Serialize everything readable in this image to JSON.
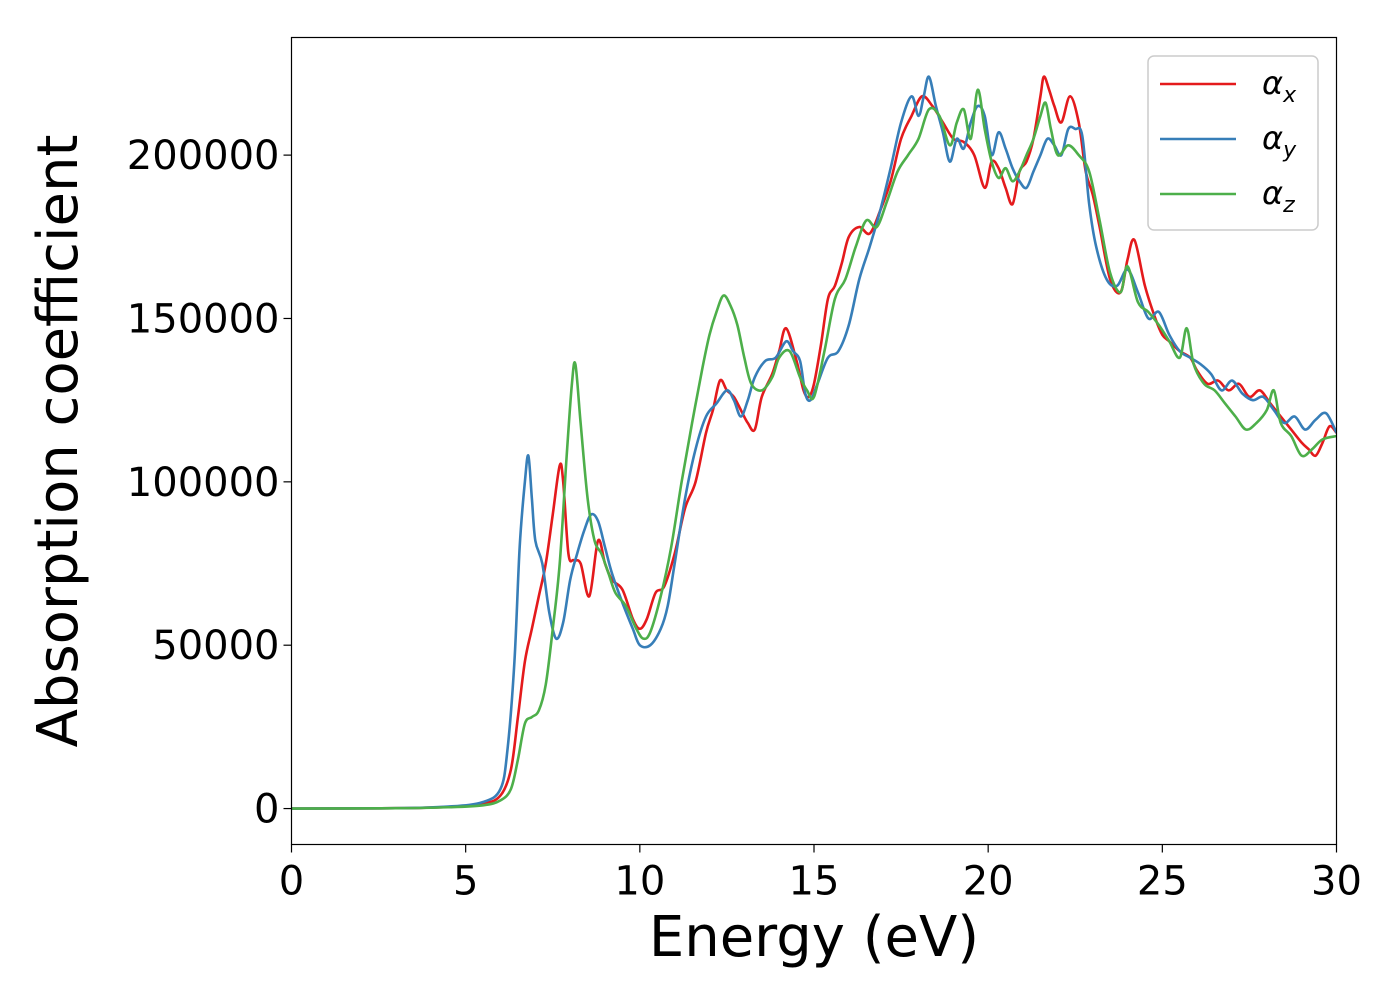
{
  "chart_data": {
    "type": "line",
    "title": "",
    "xlabel": "Energy (eV)",
    "ylabel": "Absorption coefficient",
    "xlim": [
      0,
      30
    ],
    "ylim": [
      -11000,
      236000
    ],
    "xticks": [
      0,
      5,
      10,
      15,
      20,
      25,
      30
    ],
    "yticks": [
      0,
      50000,
      100000,
      150000,
      200000
    ],
    "grid": false,
    "legend_position": "top-right",
    "series": [
      {
        "name": "αx",
        "symbol": "α",
        "subscript": "x",
        "color": "#e41a1c",
        "x": [
          0,
          3,
          4.5,
          5.5,
          6.0,
          6.3,
          6.5,
          6.7,
          6.9,
          7.1,
          7.3,
          7.5,
          7.7,
          7.8,
          7.95,
          8.1,
          8.3,
          8.55,
          8.8,
          9.0,
          9.2,
          9.5,
          9.8,
          10.0,
          10.2,
          10.45,
          10.7,
          11.0,
          11.3,
          11.6,
          11.9,
          12.1,
          12.3,
          12.5,
          12.7,
          12.9,
          13.1,
          13.3,
          13.5,
          13.8,
          14.0,
          14.2,
          14.5,
          14.7,
          14.85,
          15.0,
          15.2,
          15.4,
          15.6,
          15.8,
          16.0,
          16.3,
          16.6,
          16.9,
          17.2,
          17.5,
          17.8,
          18.1,
          18.4,
          18.7,
          19.0,
          19.3,
          19.6,
          19.9,
          20.1,
          20.3,
          20.5,
          20.7,
          20.9,
          21.1,
          21.3,
          21.5,
          21.6,
          21.75,
          21.9,
          22.1,
          22.35,
          22.6,
          22.8,
          23.0,
          23.2,
          23.5,
          23.8,
          24.0,
          24.2,
          24.5,
          24.8,
          25.0,
          25.2,
          25.5,
          25.8,
          26.0,
          26.3,
          26.6,
          26.9,
          27.2,
          27.5,
          27.8,
          28.1,
          28.4,
          28.7,
          29.0,
          29.2,
          29.4,
          29.6,
          29.8,
          30
        ],
        "y": [
          0,
          100,
          500,
          1500,
          4000,
          12000,
          28000,
          45000,
          55000,
          65000,
          75000,
          90000,
          105000,
          100000,
          78000,
          76000,
          75000,
          65000,
          82000,
          75000,
          70000,
          67000,
          58000,
          55000,
          58000,
          66000,
          68000,
          78000,
          92000,
          100000,
          115000,
          122000,
          131000,
          128000,
          126000,
          122000,
          118000,
          116000,
          126000,
          133000,
          140000,
          147000,
          137000,
          128000,
          126000,
          130000,
          142000,
          156000,
          160000,
          167000,
          175000,
          178000,
          176000,
          183000,
          192000,
          205000,
          212000,
          218000,
          215000,
          210000,
          205000,
          204000,
          200000,
          190000,
          198000,
          196000,
          190000,
          185000,
          195000,
          198000,
          205000,
          218000,
          224000,
          220000,
          215000,
          210000,
          218000,
          210000,
          195000,
          188000,
          178000,
          162000,
          158000,
          168000,
          174000,
          160000,
          150000,
          145000,
          143000,
          140000,
          138000,
          134000,
          130000,
          131000,
          128000,
          130000,
          126000,
          128000,
          124000,
          120000,
          116000,
          112000,
          110000,
          108000,
          112000,
          117000,
          115000
        ]
      },
      {
        "name": "αy",
        "symbol": "α",
        "subscript": "y",
        "color": "#377eb8",
        "x": [
          0,
          3,
          4.5,
          5.5,
          6.0,
          6.2,
          6.4,
          6.55,
          6.7,
          6.8,
          6.9,
          7.0,
          7.2,
          7.4,
          7.6,
          7.8,
          8.0,
          8.2,
          8.4,
          8.6,
          8.8,
          9.0,
          9.2,
          9.5,
          9.8,
          10.0,
          10.3,
          10.6,
          10.8,
          11.0,
          11.3,
          11.6,
          11.9,
          12.2,
          12.5,
          12.7,
          12.9,
          13.1,
          13.3,
          13.6,
          13.9,
          14.2,
          14.4,
          14.6,
          14.75,
          14.9,
          15.1,
          15.4,
          15.7,
          16.0,
          16.3,
          16.6,
          16.9,
          17.2,
          17.5,
          17.8,
          18.0,
          18.15,
          18.3,
          18.5,
          18.7,
          18.9,
          19.1,
          19.3,
          19.5,
          19.7,
          19.9,
          20.1,
          20.3,
          20.5,
          20.7,
          20.9,
          21.1,
          21.3,
          21.5,
          21.7,
          21.9,
          22.1,
          22.3,
          22.5,
          22.7,
          22.9,
          23.1,
          23.4,
          23.7,
          24.0,
          24.3,
          24.6,
          24.9,
          25.2,
          25.5,
          25.8,
          26.1,
          26.4,
          26.7,
          27.0,
          27.3,
          27.6,
          27.9,
          28.2,
          28.5,
          28.8,
          29.1,
          29.4,
          29.7,
          30
        ],
        "y": [
          0,
          100,
          600,
          2000,
          6000,
          18000,
          45000,
          80000,
          100000,
          108000,
          95000,
          82000,
          75000,
          60000,
          52000,
          57000,
          70000,
          78000,
          85000,
          90000,
          88000,
          80000,
          72000,
          63000,
          55000,
          50000,
          50000,
          55000,
          62000,
          75000,
          95000,
          110000,
          120000,
          124000,
          128000,
          125000,
          120000,
          125000,
          132000,
          137000,
          138000,
          143000,
          140000,
          137000,
          127000,
          125000,
          130000,
          138000,
          140000,
          148000,
          162000,
          172000,
          183000,
          196000,
          210000,
          218000,
          212000,
          218000,
          224000,
          215000,
          207000,
          198000,
          205000,
          202000,
          210000,
          215000,
          212000,
          200000,
          207000,
          202000,
          196000,
          192000,
          190000,
          195000,
          200000,
          205000,
          203000,
          200000,
          208000,
          208000,
          206000,
          185000,
          172000,
          162000,
          160000,
          165000,
          158000,
          150000,
          152000,
          145000,
          140000,
          138000,
          136000,
          133000,
          128000,
          131000,
          127000,
          125000,
          126000,
          122000,
          118000,
          120000,
          116000,
          119000,
          121000,
          115000
        ]
      },
      {
        "name": "αz",
        "symbol": "α",
        "subscript": "z",
        "color": "#4daf4a",
        "x": [
          0,
          3,
          4.5,
          5.5,
          6.0,
          6.3,
          6.5,
          6.7,
          6.9,
          7.1,
          7.3,
          7.5,
          7.7,
          7.9,
          8.05,
          8.15,
          8.3,
          8.5,
          8.7,
          8.9,
          9.1,
          9.3,
          9.6,
          9.9,
          10.1,
          10.3,
          10.6,
          10.9,
          11.2,
          11.5,
          11.8,
          12.0,
          12.2,
          12.4,
          12.6,
          12.8,
          13.0,
          13.2,
          13.5,
          13.8,
          14.0,
          14.3,
          14.6,
          14.8,
          15.0,
          15.3,
          15.6,
          15.9,
          16.2,
          16.5,
          16.8,
          17.1,
          17.4,
          17.7,
          18.0,
          18.3,
          18.6,
          18.9,
          19.1,
          19.3,
          19.5,
          19.7,
          19.9,
          20.1,
          20.3,
          20.5,
          20.7,
          20.9,
          21.1,
          21.3,
          21.5,
          21.65,
          21.8,
          22.0,
          22.3,
          22.6,
          22.9,
          23.2,
          23.5,
          23.8,
          24.0,
          24.3,
          24.6,
          24.9,
          25.2,
          25.5,
          25.7,
          25.9,
          26.2,
          26.5,
          26.8,
          27.1,
          27.4,
          27.7,
          28.0,
          28.2,
          28.4,
          28.7,
          29.0,
          29.3,
          29.6,
          30
        ],
        "y": [
          0,
          100,
          400,
          1000,
          2500,
          6000,
          15000,
          26000,
          28000,
          30000,
          38000,
          55000,
          75000,
          108000,
          130000,
          136000,
          118000,
          95000,
          82000,
          78000,
          72000,
          66000,
          62000,
          55000,
          52000,
          54000,
          65000,
          80000,
          100000,
          118000,
          135000,
          145000,
          152000,
          157000,
          154000,
          148000,
          138000,
          130000,
          128000,
          132000,
          138000,
          140000,
          132000,
          128000,
          126000,
          140000,
          156000,
          162000,
          172000,
          180000,
          178000,
          186000,
          195000,
          200000,
          205000,
          214000,
          212000,
          203000,
          210000,
          214000,
          205000,
          220000,
          208000,
          198000,
          193000,
          196000,
          192000,
          195000,
          200000,
          205000,
          212000,
          216000,
          208000,
          200000,
          203000,
          200000,
          195000,
          180000,
          164000,
          158000,
          166000,
          155000,
          152000,
          148000,
          143000,
          138000,
          147000,
          136000,
          130000,
          128000,
          124000,
          120000,
          116000,
          118000,
          122000,
          128000,
          118000,
          114000,
          108000,
          110000,
          113000,
          114000
        ]
      }
    ]
  }
}
